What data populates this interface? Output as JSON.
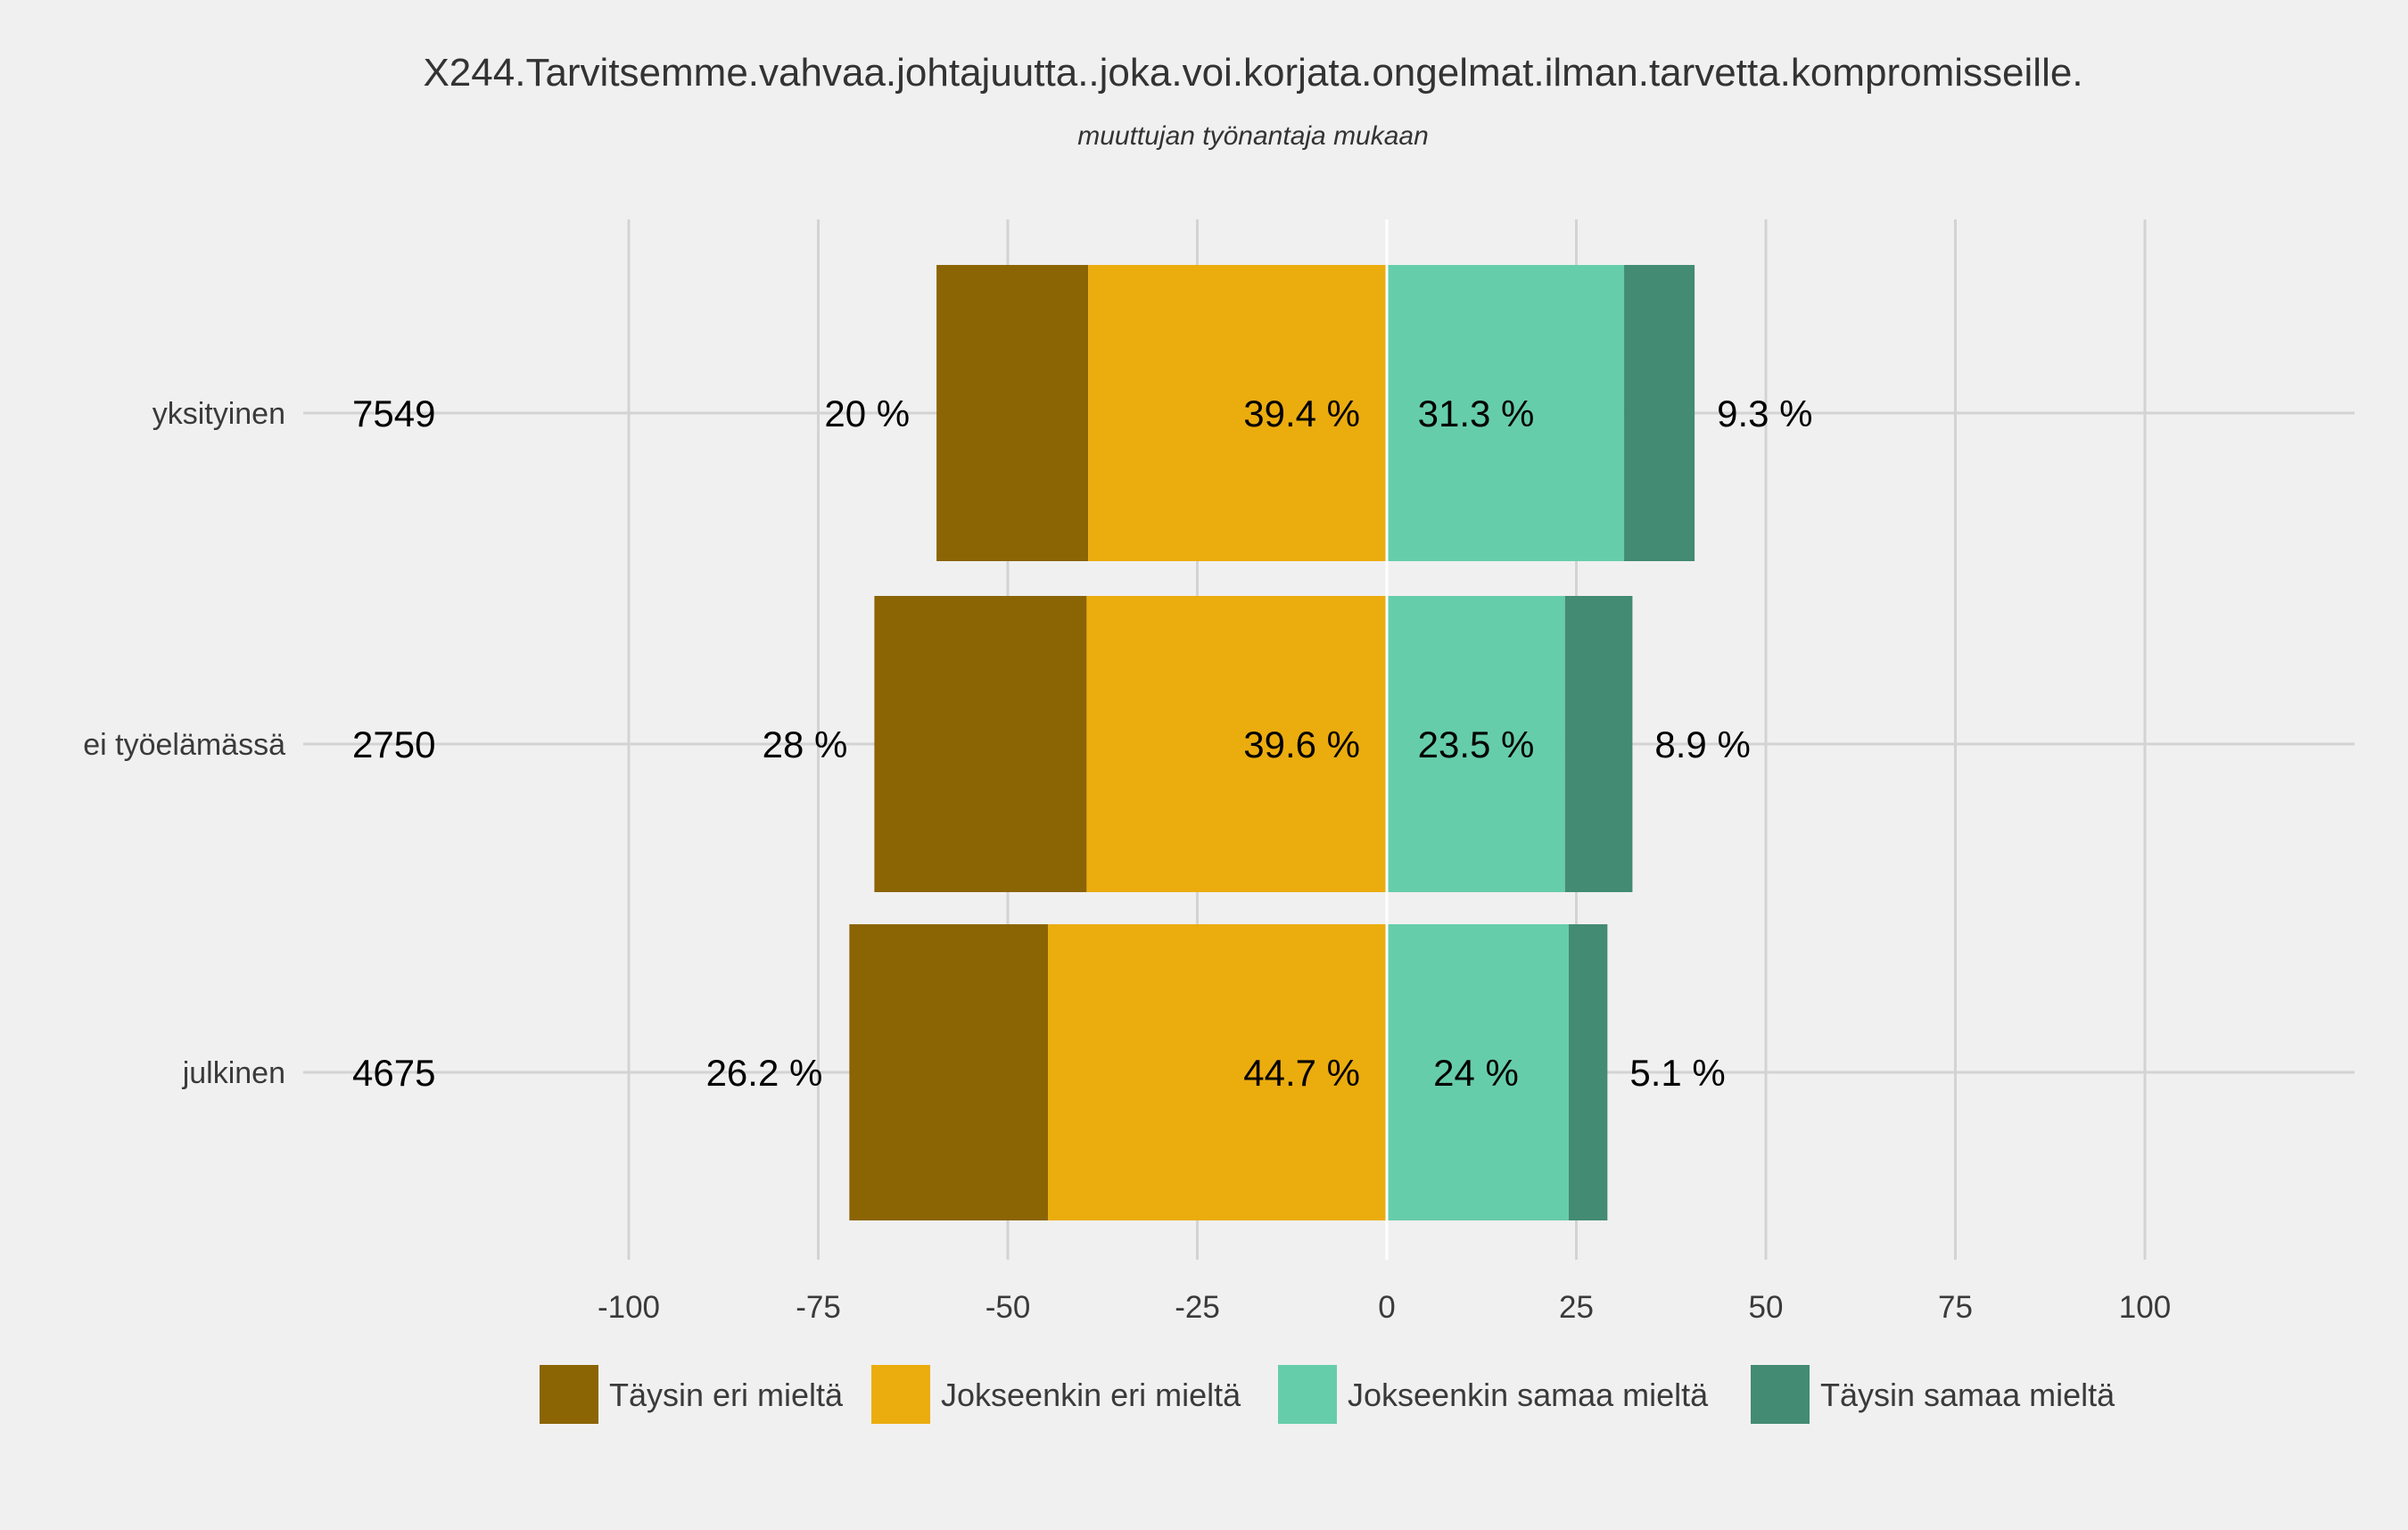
{
  "chart_data": {
    "type": "bar",
    "orientation": "horizontal-diverging-stacked",
    "title": "X244.Tarvitsemme.vahvaa.johtajuutta..joka.voi.korjata.ongelmat.ilman.tarvetta.kompromisseille.",
    "subtitle": "muuttujan  työnantaja  mukaan",
    "xlim": [
      -100,
      100
    ],
    "xticks": [
      -100,
      -75,
      -50,
      -25,
      0,
      25,
      50,
      75,
      100
    ],
    "xtick_labels": [
      "-100",
      "-75",
      "-50",
      "-25",
      "0",
      "25",
      "50",
      "75",
      "100"
    ],
    "grid": true,
    "legend_position": "bottom",
    "categories": [
      "yksityinen",
      "ei työelämässä",
      "julkinen"
    ],
    "counts": [
      "7549",
      "2750",
      "4675"
    ],
    "series": [
      {
        "name": "Täysin eri mieltä",
        "color": "#8b6404",
        "side": "negative",
        "values": [
          20,
          28,
          26.2
        ],
        "labels": [
          "20 %",
          "28 %",
          "26.2 %"
        ]
      },
      {
        "name": "Jokseenkin eri mieltä",
        "color": "#ebac0e",
        "side": "negative",
        "values": [
          39.4,
          39.6,
          44.7
        ],
        "labels": [
          "39.4 %",
          "39.6 %",
          "44.7 %"
        ]
      },
      {
        "name": "Jokseenkin samaa mieltä",
        "color": "#66cdaa",
        "side": "positive",
        "values": [
          31.3,
          23.5,
          24
        ],
        "labels": [
          "31.3 %",
          "23.5 %",
          "24 %"
        ]
      },
      {
        "name": "Täysin samaa mieltä",
        "color": "#438b73",
        "side": "positive",
        "values": [
          9.3,
          8.9,
          5.1
        ],
        "labels": [
          "9.3 %",
          "8.9 %",
          "5.1 %"
        ]
      }
    ]
  }
}
